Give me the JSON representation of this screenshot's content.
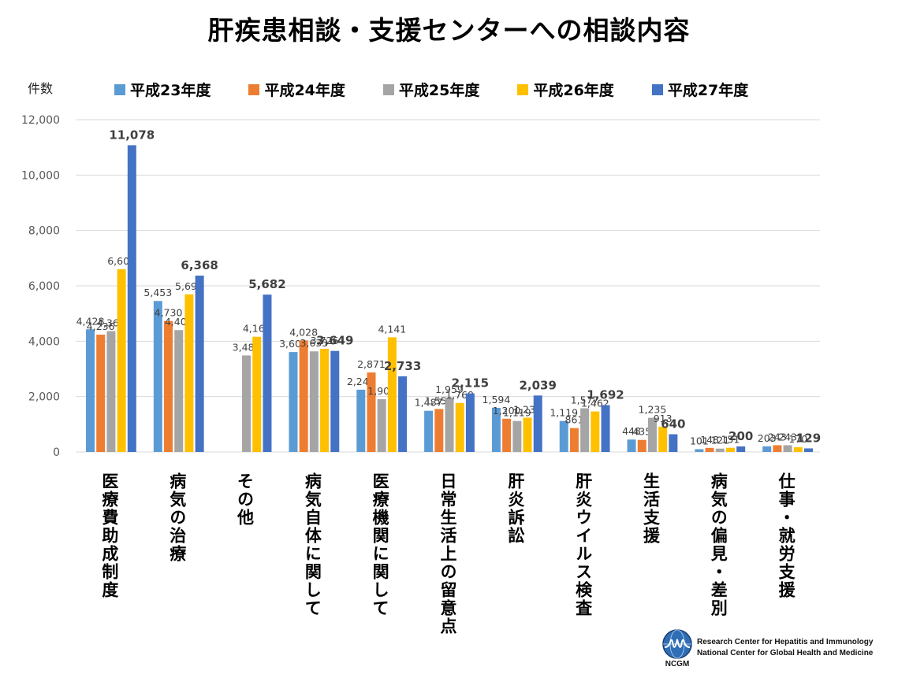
{
  "chart_data": {
    "type": "bar",
    "title": "肝疾患相談・支援センターへの相談内容",
    "xlabel": "",
    "ylabel": "件数",
    "ylim": [
      0,
      12000
    ],
    "yticks": [
      0,
      2000,
      4000,
      6000,
      8000,
      10000,
      12000
    ],
    "ytick_labels": [
      "0",
      "2,000",
      "4,000",
      "6,000",
      "8,000",
      "10,000",
      "12,000"
    ],
    "grid": true,
    "legend_position": "top",
    "categories": [
      "医療費助成制度",
      "病気の治療",
      "その他",
      "病気自体に関して",
      "医療機関に関して",
      "日常生活上の留意点",
      "肝炎訴訟",
      "肝炎ウイルス検査",
      "生活支援",
      "病気の偏見・差別",
      "仕事・就労支援"
    ],
    "series": [
      {
        "name": "平成23年度",
        "color": "#5B9BD5",
        "values": [
          4428,
          5453,
          null,
          3608,
          2249,
          1487,
          1594,
          1119,
          448,
          101,
          203
        ]
      },
      {
        "name": "平成24年度",
        "color": "#ED7D31",
        "values": [
          4236,
          4730,
          null,
          4028,
          2871,
          1552,
          1200,
          861,
          435,
          148,
          243
        ]
      },
      {
        "name": "平成25年度",
        "color": "#A5A5A5",
        "values": [
          4363,
          4401,
          3485,
          3633,
          1904,
          1959,
          1119,
          1577,
          1235,
          121,
          243
        ]
      },
      {
        "name": "平成26年度",
        "color": "#FFC000",
        "values": [
          6601,
          5692,
          4160,
          3726,
          4141,
          1769,
          1238,
          1462,
          913,
          151,
          170
        ]
      },
      {
        "name": "平成27年度",
        "color": "#4472C4",
        "values": [
          11078,
          6368,
          5682,
          3649,
          2733,
          2115,
          2039,
          1692,
          640,
          200,
          129
        ],
        "labels_bold": true
      }
    ]
  },
  "footer": {
    "logo_text": "NCGM",
    "line1": "Research Center for Hepatitis and Immunology",
    "line2": "National Center for Global Health and Medicine"
  }
}
